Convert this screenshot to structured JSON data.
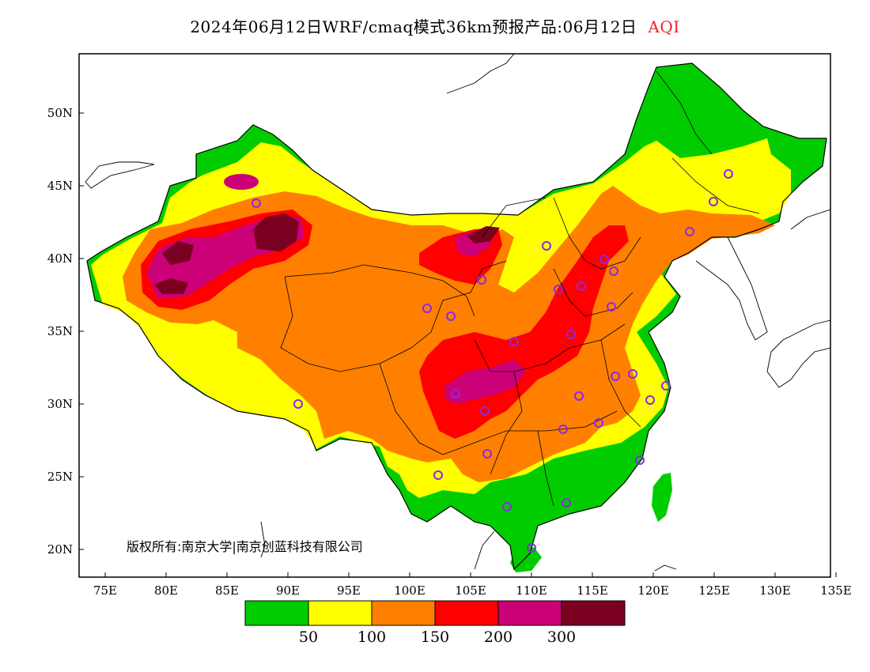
{
  "title": {
    "main": "2024年06月12日WRF/cmaq模式36km预报产品:06月12日",
    "variable": "AQI"
  },
  "axes": {
    "x_ticks": [
      "75E",
      "80E",
      "85E",
      "90E",
      "95E",
      "100E",
      "105E",
      "110E",
      "115E",
      "120E",
      "125E",
      "130E",
      "135E"
    ],
    "y_ticks": [
      "20N",
      "25N",
      "30N",
      "35N",
      "40N",
      "45N",
      "50N"
    ]
  },
  "credit": "版权所有:南京大学|南京创蓝科技有限公司",
  "legend": {
    "colors": [
      "#00cc00",
      "#ffff00",
      "#ff8000",
      "#ff0000",
      "#cc0077",
      "#7a0020"
    ],
    "labels": [
      "50",
      "100",
      "150",
      "200",
      "300"
    ]
  },
  "colors": {
    "good": "#00cc00",
    "moderate": "#ffff00",
    "unhealthy_sensitive": "#ff8000",
    "unhealthy": "#ff0000",
    "very_unhealthy": "#cc0077",
    "hazardous": "#7a0020",
    "station": "#8a2be2"
  }
}
